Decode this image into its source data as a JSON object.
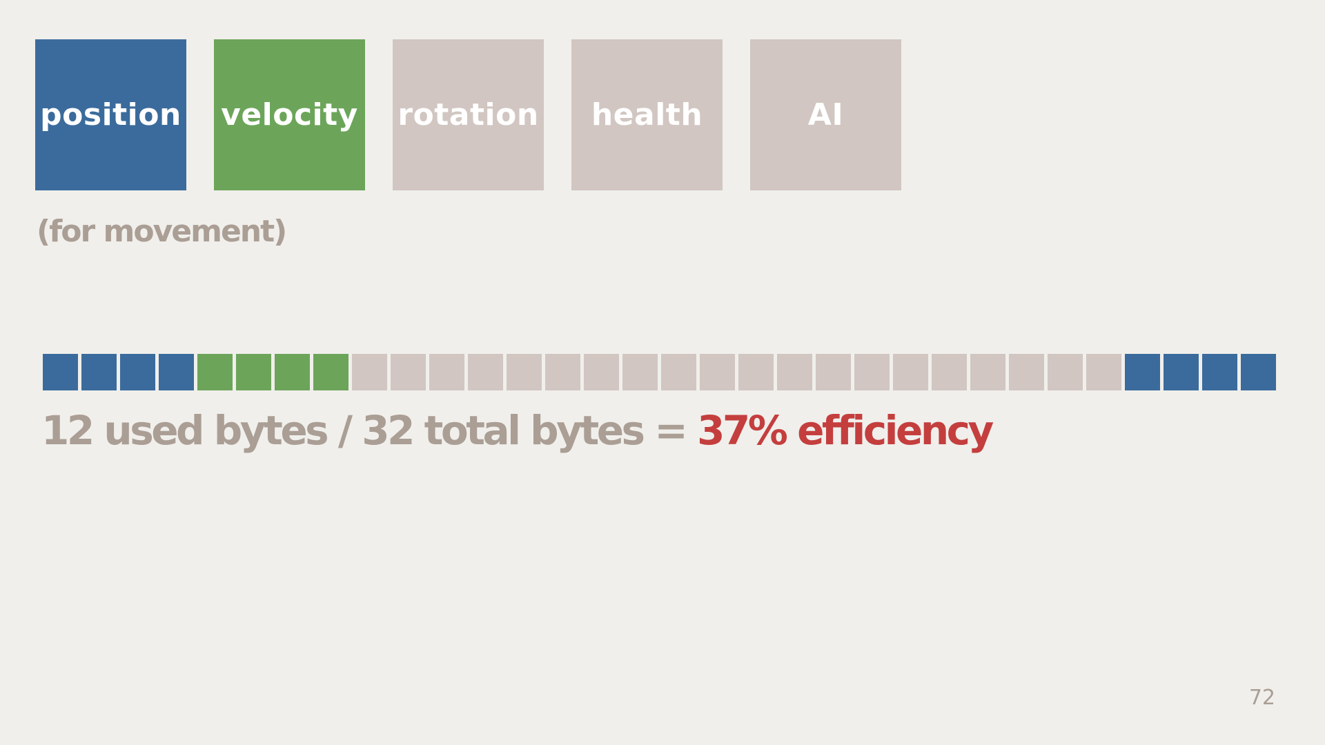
{
  "colors": {
    "background": "#f0efeb",
    "position": "#3b6b9c",
    "velocity": "#6ca55a",
    "inactive": "#d1c6c1",
    "text_muted": "#aa9e95",
    "highlight": "#c43e3e"
  },
  "components": [
    {
      "label": "position",
      "color": "#3b6b9c"
    },
    {
      "label": "velocity",
      "color": "#6ca55a"
    },
    {
      "label": "rotation",
      "color": "#d1c6c1"
    },
    {
      "label": "health",
      "color": "#d1c6c1"
    },
    {
      "label": "AI",
      "color": "#d1c6c1"
    }
  ],
  "subnote": "(for movement)",
  "byte_strip": {
    "total": 32,
    "cells": [
      "position",
      "position",
      "position",
      "position",
      "velocity",
      "velocity",
      "velocity",
      "velocity",
      "unused",
      "unused",
      "unused",
      "unused",
      "unused",
      "unused",
      "unused",
      "unused",
      "unused",
      "unused",
      "unused",
      "unused",
      "unused",
      "unused",
      "unused",
      "unused",
      "unused",
      "unused",
      "unused",
      "unused",
      "position",
      "position",
      "position",
      "position"
    ]
  },
  "summary": {
    "prefix": "12 used bytes / 32 total bytes = ",
    "highlight": "37% efficiency"
  },
  "page_number": "72"
}
